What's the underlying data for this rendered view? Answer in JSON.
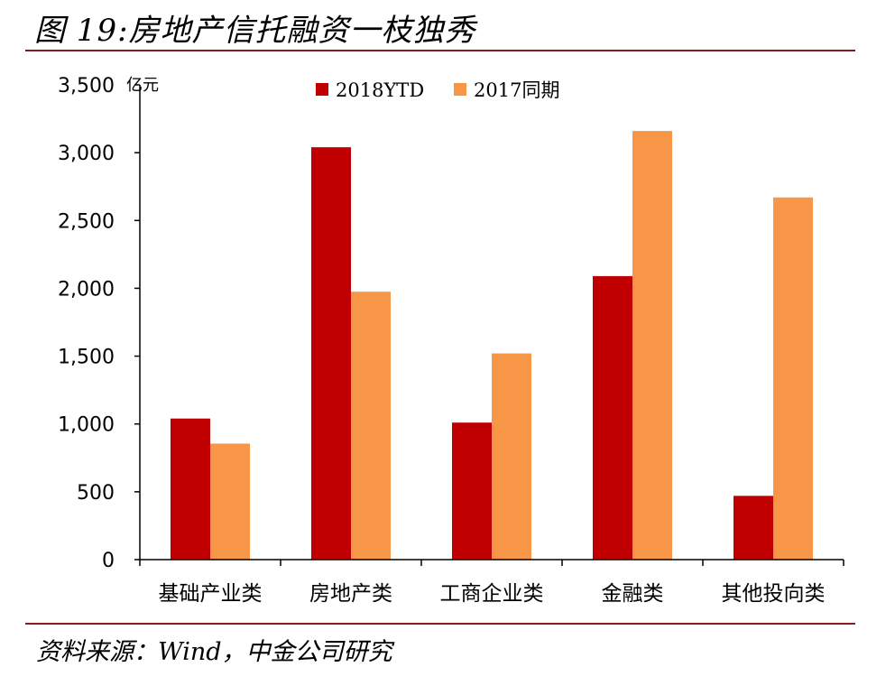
{
  "figure": {
    "title": "图 19:房地产信托融资一枝独秀",
    "source": "资料来源：Wind，中金公司研究"
  },
  "chart_data": {
    "type": "bar",
    "unit": "亿元",
    "categories": [
      "基础产业类",
      "房地产类",
      "工商企业类",
      "金融类",
      "其他投向类"
    ],
    "series": [
      {
        "name": "2018YTD",
        "color": "#c00000",
        "values": [
          1040,
          3040,
          1010,
          2090,
          470
        ]
      },
      {
        "name": "2017同期",
        "color": "#f79646",
        "values": [
          855,
          1975,
          1520,
          3160,
          2670
        ]
      }
    ],
    "yticks": [
      "0",
      "500",
      "1,000",
      "1,500",
      "2,000",
      "2,500",
      "3,000",
      "3,500"
    ],
    "ylim": [
      0,
      3500
    ],
    "grid": false,
    "legend_position": "top"
  }
}
